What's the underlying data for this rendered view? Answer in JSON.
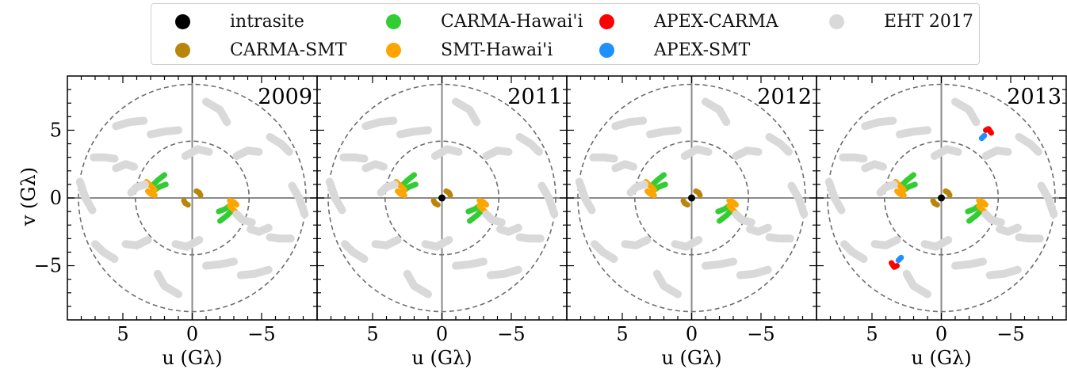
{
  "legend": {
    "items": [
      {
        "label": "intrasite",
        "color": "#000000"
      },
      {
        "label": "CARMA-SMT",
        "color": "#b8860b"
      },
      {
        "label": "CARMA-Hawai'i",
        "color": "#32cd32"
      },
      {
        "label": "SMT-Hawai'i",
        "color": "#ffa500"
      },
      {
        "label": "APEX-CARMA",
        "color": "#ff0000"
      },
      {
        "label": "APEX-SMT",
        "color": "#1e90ff"
      },
      {
        "label": "EHT 2017",
        "color": "#d9d9d9"
      }
    ]
  },
  "axes": {
    "xlabel": "u (Gλ)",
    "ylabel": "v (Gλ)",
    "xticks": [
      "5",
      "0",
      "−5"
    ],
    "yticks": [
      "5",
      "0",
      "−5"
    ]
  },
  "chart_data": {
    "type": "scatter",
    "xlim": [
      9,
      -9
    ],
    "ylim": [
      -9,
      9
    ],
    "x_inverted": true,
    "grid": false,
    "guide_circles_radius": [
      4.1,
      8.2
    ],
    "panels": [
      {
        "title": "2009",
        "intrasite": false,
        "apex": false
      },
      {
        "title": "2011",
        "intrasite": true,
        "apex": false
      },
      {
        "title": "2012",
        "intrasite": true,
        "apex": false
      },
      {
        "title": "2013",
        "intrasite": true,
        "apex": true
      }
    ],
    "series": [
      {
        "name": "CARMA-SMT",
        "color": "#b8860b",
        "tracks": [
          [
            [
              0.6,
              -0.2
            ],
            [
              0.5,
              -0.4
            ],
            [
              0.3,
              -0.5
            ]
          ],
          [
            [
              -0.6,
              0.2
            ],
            [
              -0.5,
              0.4
            ],
            [
              -0.3,
              0.5
            ]
          ]
        ]
      },
      {
        "name": "CARMA-Hawai'i",
        "color": "#32cd32",
        "tracks": [
          [
            [
              2.9,
              0.9
            ],
            [
              2.5,
              1.3
            ],
            [
              2.0,
              1.7
            ]
          ],
          [
            [
              2.8,
              0.5
            ],
            [
              2.4,
              0.8
            ],
            [
              1.9,
              1.0
            ]
          ],
          [
            [
              -2.9,
              -0.9
            ],
            [
              -2.5,
              -1.3
            ],
            [
              -2.0,
              -1.7
            ]
          ],
          [
            [
              -2.8,
              -0.5
            ],
            [
              -2.4,
              -0.8
            ],
            [
              -1.9,
              -1.0
            ]
          ]
        ]
      },
      {
        "name": "SMT-Hawai'i",
        "color": "#ffa500",
        "tracks": [
          [
            [
              3.3,
              1.2
            ],
            [
              3.0,
              0.9
            ],
            [
              2.7,
              0.6
            ]
          ],
          [
            [
              3.2,
              0.5
            ],
            [
              3.0,
              0.3
            ],
            [
              2.7,
              0.2
            ]
          ],
          [
            [
              -3.3,
              -1.2
            ],
            [
              -3.0,
              -0.9
            ],
            [
              -2.7,
              -0.6
            ]
          ],
          [
            [
              -3.2,
              -0.5
            ],
            [
              -3.0,
              -0.3
            ],
            [
              -2.7,
              -0.2
            ]
          ]
        ]
      },
      {
        "name": "APEX-CARMA",
        "color": "#ff0000",
        "tracks": [
          [
            [
              -3.6,
              4.8
            ],
            [
              -3.4,
              5.1
            ],
            [
              -3.2,
              5.0
            ]
          ],
          [
            [
              3.6,
              -4.8
            ],
            [
              3.4,
              -5.1
            ],
            [
              3.2,
              -5.0
            ]
          ]
        ]
      },
      {
        "name": "APEX-SMT",
        "color": "#1e90ff",
        "tracks": [
          [
            [
              -2.9,
              4.4
            ],
            [
              -3.1,
              4.6
            ]
          ],
          [
            [
              2.9,
              -4.4
            ],
            [
              3.1,
              -4.6
            ]
          ]
        ]
      },
      {
        "name": "EHT 2017",
        "color": "#d9d9d9",
        "tracks": [
          [
            [
              5.5,
              5.3
            ],
            [
              4.5,
              5.6
            ],
            [
              3.5,
              5.7
            ]
          ],
          [
            [
              -1.0,
              7.1
            ],
            [
              -2.0,
              6.5
            ],
            [
              -2.5,
              5.6
            ]
          ],
          [
            [
              3.0,
              4.7
            ],
            [
              2.0,
              4.9
            ],
            [
              1.0,
              5.0
            ]
          ],
          [
            [
              -3.2,
              3.1
            ],
            [
              -4.0,
              3.5
            ],
            [
              -4.8,
              3.4
            ]
          ],
          [
            [
              -5.6,
              4.5
            ],
            [
              -6.4,
              4.0
            ],
            [
              -7.0,
              3.4
            ]
          ],
          [
            [
              7.1,
              3.0
            ],
            [
              6.3,
              3.0
            ],
            [
              5.6,
              2.9
            ]
          ],
          [
            [
              5.5,
              2.2
            ],
            [
              4.8,
              2.5
            ],
            [
              4.2,
              2.3
            ]
          ],
          [
            [
              8.1,
              1.2
            ],
            [
              7.7,
              0.0
            ],
            [
              7.2,
              -0.9
            ]
          ],
          [
            [
              4.4,
              0.4
            ],
            [
              4.0,
              0.8
            ],
            [
              3.4,
              1.0
            ]
          ],
          [
            [
              -8.1,
              -1.2
            ],
            [
              -7.7,
              0.0
            ],
            [
              -7.2,
              0.9
            ]
          ],
          [
            [
              -3.2,
              -1.2
            ],
            [
              -3.6,
              -1.6
            ],
            [
              -4.3,
              -1.8
            ]
          ],
          [
            [
              -5.5,
              -2.2
            ],
            [
              -4.8,
              -2.5
            ],
            [
              -4.2,
              -2.3
            ]
          ],
          [
            [
              -7.1,
              -3.0
            ],
            [
              -6.3,
              -3.0
            ],
            [
              -5.6,
              -2.9
            ]
          ],
          [
            [
              5.6,
              -4.5
            ],
            [
              6.4,
              -4.0
            ],
            [
              7.0,
              -3.4
            ]
          ],
          [
            [
              3.2,
              -3.1
            ],
            [
              4.0,
              -3.5
            ],
            [
              4.8,
              -3.4
            ]
          ],
          [
            [
              -3.0,
              -4.7
            ],
            [
              -2.0,
              -4.9
            ],
            [
              -1.0,
              -5.0
            ]
          ],
          [
            [
              1.0,
              -7.1
            ],
            [
              2.0,
              -6.5
            ],
            [
              2.5,
              -5.6
            ]
          ],
          [
            [
              -5.5,
              -5.3
            ],
            [
              -4.5,
              -5.6
            ],
            [
              -3.5,
              -5.7
            ]
          ],
          [
            [
              -0.5,
              -3.1
            ],
            [
              0.4,
              -3.6
            ],
            [
              1.2,
              -3.4
            ]
          ],
          [
            [
              0.5,
              3.1
            ],
            [
              -0.4,
              3.6
            ],
            [
              -1.2,
              3.4
            ]
          ]
        ]
      }
    ]
  }
}
